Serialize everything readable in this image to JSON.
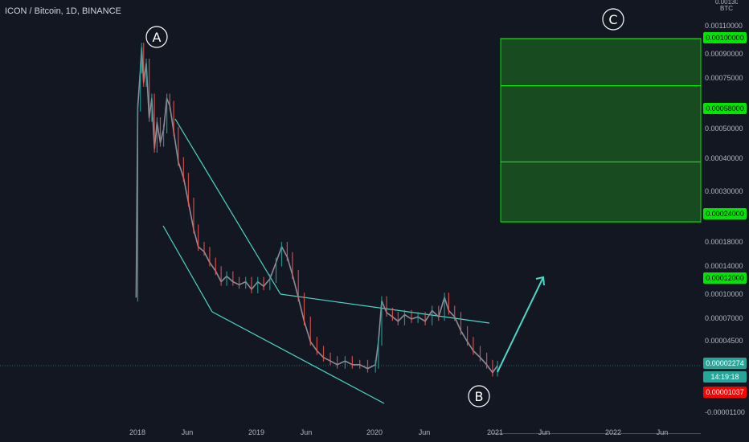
{
  "title": "ICON / Bitcoin, 1D, BINANCE",
  "currency": "BTC",
  "top_cut_label": "0.00130000",
  "chart_data": {
    "type": "line",
    "title": "ICON / Bitcoin, 1D, BINANCE",
    "yscale": "log",
    "ylabel": "",
    "xlabel": "",
    "y_ticks": [
      "0.00110000",
      "0.00090000",
      "0.00075000",
      "0.00050000",
      "0.00040000",
      "0.00030000",
      "0.00018000",
      "0.00014000",
      "0.00010000",
      "0.00007000",
      "0.00004500",
      "-0.00001100"
    ],
    "x_ticks": [
      "2018",
      "Jun",
      "2019",
      "Jun",
      "2020",
      "Jun",
      "2021",
      "Jun",
      "2022",
      "Jun"
    ],
    "price_labels": [
      {
        "value": "0.00100000",
        "color": "#00e600"
      },
      {
        "value": "0.00058000",
        "color": "#00e600"
      },
      {
        "value": "0.00024000",
        "color": "#00e600"
      },
      {
        "value": "0.00012000",
        "color": "#00e600"
      },
      {
        "value": "0.00002274",
        "color": "#26a69a"
      },
      {
        "value": "14:19:18",
        "color": "#26a69a"
      },
      {
        "value": "0.00001037",
        "color": "#ff0000"
      }
    ],
    "target_levels": [
      0.001,
      0.00058,
      0.00024,
      0.00012
    ],
    "support_level": 1.037e-05,
    "current_price": 2.274e-05,
    "annotations": [
      "A",
      "B",
      "C"
    ],
    "price_series": [
      [
        "2017-12-28",
        5e-05
      ],
      [
        "2018-01-02",
        0.00045
      ],
      [
        "2018-01-10",
        0.0007
      ],
      [
        "2018-01-14",
        0.0009
      ],
      [
        "2018-01-20",
        0.0006
      ],
      [
        "2018-01-28",
        0.00075
      ],
      [
        "2018-02-06",
        0.0004
      ],
      [
        "2018-02-14",
        0.0005
      ],
      [
        "2018-02-22",
        0.00028
      ],
      [
        "2018-03-02",
        0.00038
      ],
      [
        "2018-03-12",
        0.0003
      ],
      [
        "2018-03-22",
        0.00035
      ],
      [
        "2018-04-01",
        0.0005
      ],
      [
        "2018-04-10",
        0.00046
      ],
      [
        "2018-04-22",
        0.00034
      ],
      [
        "2018-05-06",
        0.00024
      ],
      [
        "2018-05-22",
        0.0002
      ],
      [
        "2018-06-06",
        0.00015
      ],
      [
        "2018-06-22",
        0.00011
      ],
      [
        "2018-07-06",
        9e-05
      ],
      [
        "2018-07-24",
        8.5e-05
      ],
      [
        "2018-08-10",
        7.5e-05
      ],
      [
        "2018-08-28",
        6.8e-05
      ],
      [
        "2018-09-14",
        6e-05
      ],
      [
        "2018-10-01",
        6.4e-05
      ],
      [
        "2018-10-20",
        6e-05
      ],
      [
        "2018-11-08",
        5.8e-05
      ],
      [
        "2018-11-28",
        6e-05
      ],
      [
        "2018-12-16",
        5.5e-05
      ],
      [
        "2019-01-04",
        6e-05
      ],
      [
        "2019-01-22",
        5.7e-05
      ],
      [
        "2019-02-10",
        6.2e-05
      ],
      [
        "2019-03-01",
        7.5e-05
      ],
      [
        "2019-03-18",
        9e-05
      ],
      [
        "2019-04-04",
        8e-05
      ],
      [
        "2019-04-20",
        6.5e-05
      ],
      [
        "2019-05-08",
        5e-05
      ],
      [
        "2019-05-26",
        3.8e-05
      ],
      [
        "2019-06-14",
        3e-05
      ],
      [
        "2019-07-04",
        2.7e-05
      ],
      [
        "2019-07-24",
        2.5e-05
      ],
      [
        "2019-08-14",
        2.4e-05
      ],
      [
        "2019-09-04",
        2.3e-05
      ],
      [
        "2019-09-28",
        2.4e-05
      ],
      [
        "2019-10-20",
        2.3e-05
      ],
      [
        "2019-11-12",
        2.3e-05
      ],
      [
        "2019-12-06",
        2.2e-05
      ],
      [
        "2019-12-30",
        2.3e-05
      ],
      [
        "2020-01-08",
        3e-05
      ],
      [
        "2020-01-18",
        4.8e-05
      ],
      [
        "2020-02-02",
        4.2e-05
      ],
      [
        "2020-02-20",
        4e-05
      ],
      [
        "2020-03-08",
        3.8e-05
      ],
      [
        "2020-03-28",
        4.1e-05
      ],
      [
        "2020-04-18",
        3.9e-05
      ],
      [
        "2020-05-08",
        4e-05
      ],
      [
        "2020-05-30",
        3.8e-05
      ],
      [
        "2020-06-20",
        4.3e-05
      ],
      [
        "2020-07-10",
        4e-05
      ],
      [
        "2020-07-28",
        5e-05
      ],
      [
        "2020-08-10",
        4.3e-05
      ],
      [
        "2020-08-28",
        4e-05
      ],
      [
        "2020-09-16",
        3.4e-05
      ],
      [
        "2020-10-06",
        3e-05
      ],
      [
        "2020-10-24",
        2.7e-05
      ],
      [
        "2020-11-14",
        2.5e-05
      ],
      [
        "2020-12-04",
        2.3e-05
      ],
      [
        "2020-12-22",
        2.1e-05
      ],
      [
        "2021-01-06",
        2.274e-05
      ]
    ]
  }
}
